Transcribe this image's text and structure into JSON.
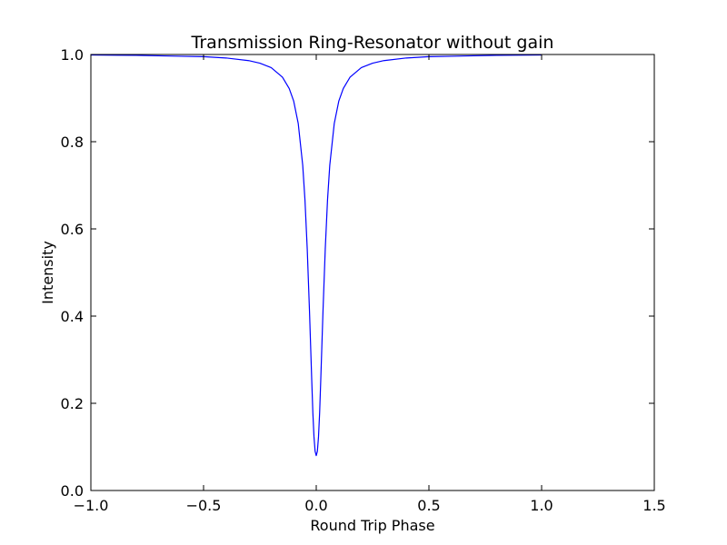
{
  "chart_data": {
    "type": "line",
    "title": "Transmission Ring-Resonator without gain",
    "xlabel": "Round Trip Phase",
    "ylabel": "Intensity",
    "xlim": [
      -1.0,
      1.5
    ],
    "ylim": [
      0.0,
      1.0
    ],
    "grid": false,
    "x_ticks": [
      -1.0,
      -0.5,
      0.0,
      0.5,
      1.0,
      1.5
    ],
    "x_tick_labels": [
      "−1.0",
      "−0.5",
      "0.0",
      "0.5",
      "1.0",
      "1.5"
    ],
    "y_ticks": [
      0.0,
      0.2,
      0.4,
      0.6,
      0.8,
      1.0
    ],
    "y_tick_labels": [
      "0.0",
      "0.2",
      "0.4",
      "0.6",
      "0.8",
      "1.0"
    ],
    "series": [
      {
        "color": "#0000ff",
        "x": [
          -1.0,
          -0.8,
          -0.6,
          -0.5,
          -0.4,
          -0.3,
          -0.25,
          -0.2,
          -0.15,
          -0.12,
          -0.1,
          -0.08,
          -0.06,
          -0.05,
          -0.04,
          -0.03,
          -0.02,
          -0.015,
          -0.01,
          -0.005,
          0.0,
          0.005,
          0.01,
          0.015,
          0.02,
          0.03,
          0.04,
          0.05,
          0.06,
          0.08,
          0.1,
          0.12,
          0.15,
          0.2,
          0.25,
          0.3,
          0.4,
          0.5,
          0.6,
          0.8,
          1.0
        ],
        "y": [
          0.999,
          0.998,
          0.996,
          0.995,
          0.992,
          0.986,
          0.98,
          0.97,
          0.948,
          0.922,
          0.893,
          0.842,
          0.746,
          0.666,
          0.554,
          0.412,
          0.253,
          0.178,
          0.123,
          0.09,
          0.08,
          0.09,
          0.123,
          0.178,
          0.253,
          0.412,
          0.554,
          0.666,
          0.746,
          0.842,
          0.893,
          0.922,
          0.948,
          0.97,
          0.98,
          0.986,
          0.992,
          0.995,
          0.996,
          0.998,
          0.999
        ]
      }
    ]
  }
}
